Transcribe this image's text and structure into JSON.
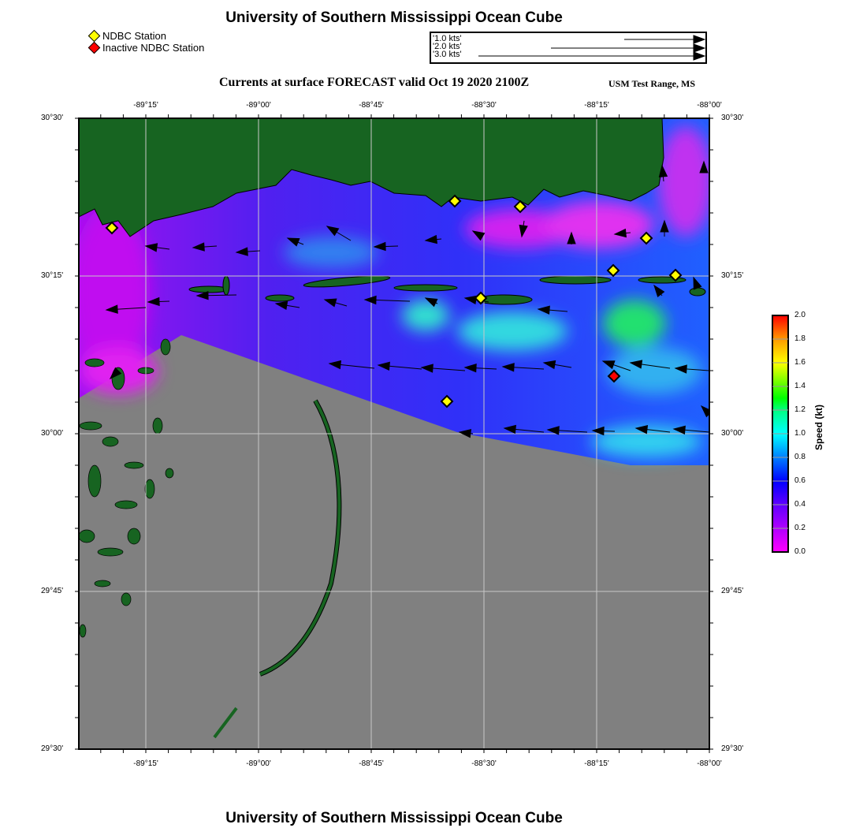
{
  "header": {
    "title": "University of Southern Mississippi Ocean Cube"
  },
  "legend": {
    "items": [
      {
        "label": "NDBC Station",
        "color": "#ffff00"
      },
      {
        "label": "Inactive NDBC Station",
        "color": "#ff0000"
      }
    ],
    "vector_scale": [
      "'1.0 kts'",
      "'2.0 kts'",
      "'3.0 kts'"
    ]
  },
  "map": {
    "title": "Currents at surface FORECAST valid Oct 19 2020 2100Z",
    "region": "USM Test Range, MS",
    "lon_ticks": [
      "-89°15'",
      "-89°00'",
      "-88°45'",
      "-88°30'",
      "-88°15'",
      "-88°00'"
    ],
    "lat_ticks": [
      "30°30'",
      "30°15'",
      "30°00'",
      "29°45'",
      "29°30'"
    ],
    "colors": {
      "land": "#176421",
      "no_data": "#808080",
      "grid": "#c8c8c8"
    },
    "stations_active": 8,
    "stations_inactive": 1
  },
  "colorbar": {
    "label": "Speed (kt)",
    "ticks": [
      "2.0",
      "1.8",
      "1.6",
      "1.4",
      "1.2",
      "1.0",
      "0.8",
      "0.6",
      "0.4",
      "0.2",
      "0.0"
    ]
  },
  "footer": {
    "title": "University of Southern Mississippi Ocean Cube"
  }
}
